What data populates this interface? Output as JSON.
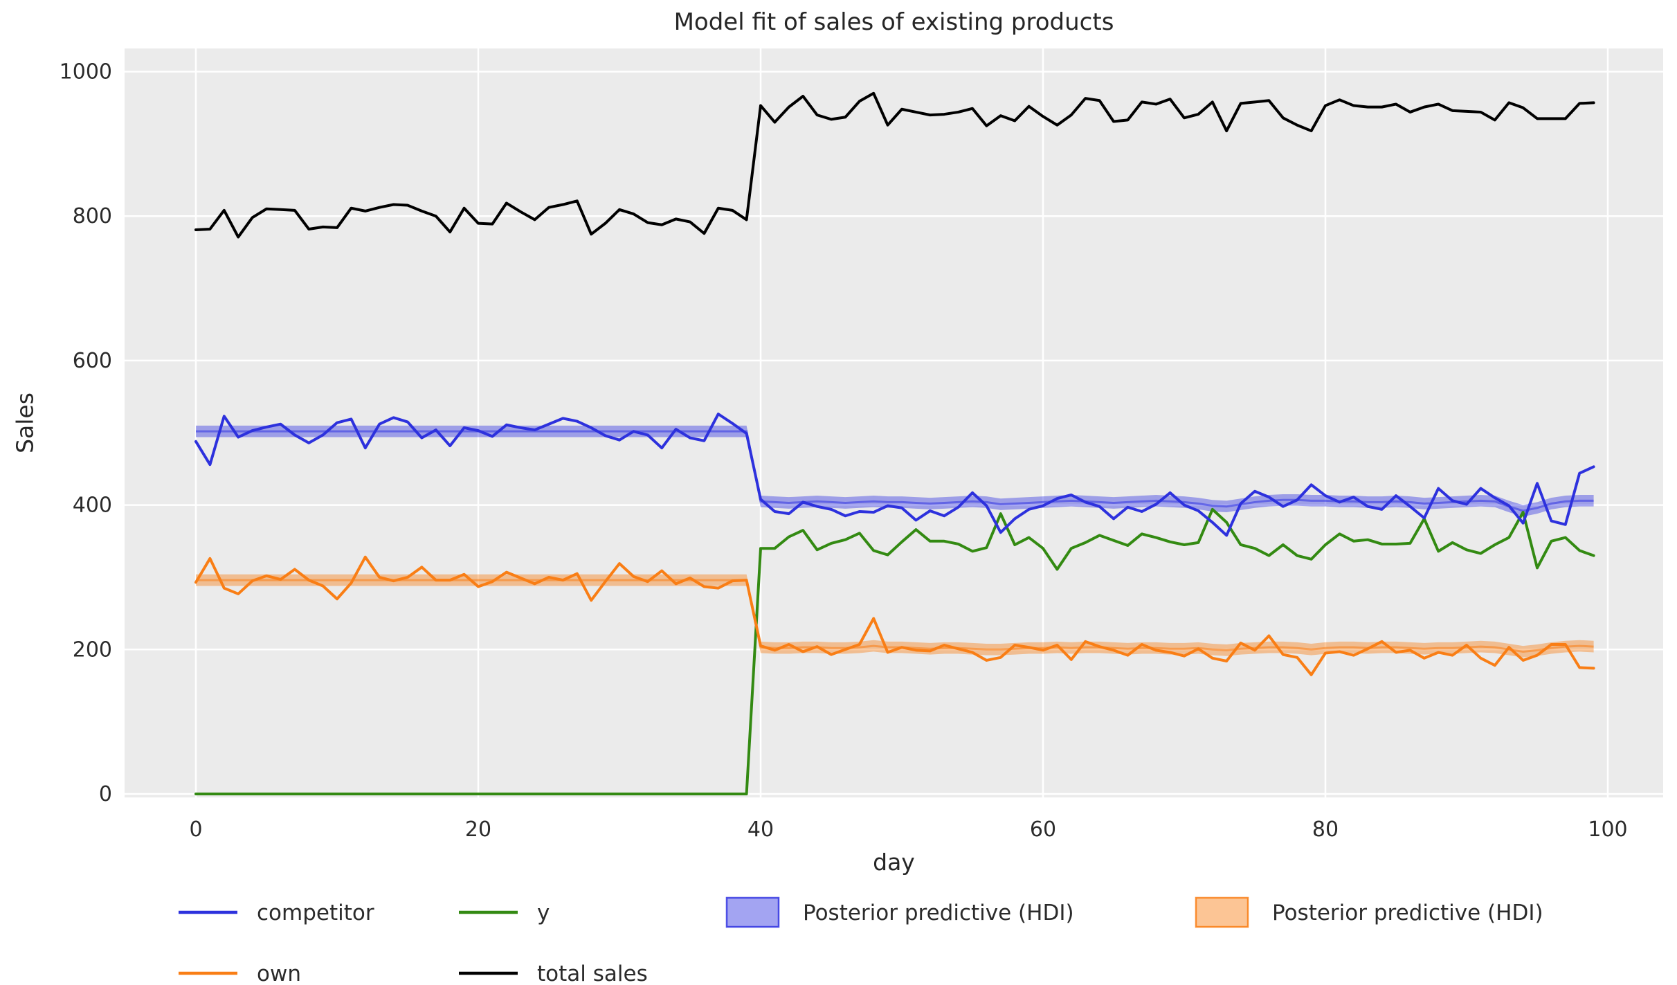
{
  "chart_data": {
    "type": "line",
    "title": "Model fit of sales of existing products",
    "xlabel": "day",
    "ylabel": "Sales",
    "x_ticks": [
      0,
      20,
      40,
      60,
      80,
      100
    ],
    "y_ticks": [
      0,
      200,
      400,
      600,
      800,
      1000
    ],
    "xlim": [
      -5,
      104
    ],
    "ylim": [
      -5,
      1032
    ],
    "grid": true,
    "plot_bg_color": "#ebebeb",
    "grid_color": "#ffffff",
    "text_color": "#2b2b2b",
    "x_days": {
      "from": 0,
      "to": 99,
      "step": 1
    },
    "series": [
      {
        "name": "competitor",
        "color": "#2d31dd",
        "values": [
          488,
          456,
          523,
          494,
          503,
          508,
          512,
          497,
          486,
          497,
          514,
          519,
          479,
          512,
          521,
          515,
          493,
          504,
          482,
          507,
          503,
          495,
          511,
          507,
          504,
          512,
          520,
          516,
          507,
          496,
          490,
          502,
          497,
          479,
          505,
          493,
          489,
          526,
          513,
          499,
          408,
          391,
          388,
          404,
          398,
          394,
          385,
          391,
          390,
          399,
          396,
          379,
          392,
          385,
          397,
          417,
          399,
          362,
          381,
          394,
          399,
          409,
          414,
          404,
          398,
          381,
          397,
          391,
          401,
          417,
          400,
          392,
          376,
          358,
          402,
          419,
          411,
          398,
          407,
          428,
          413,
          404,
          411,
          398,
          394,
          413,
          398,
          382,
          423,
          406,
          401,
          423,
          410,
          399,
          375,
          430,
          378,
          373,
          444,
          453
        ]
      },
      {
        "name": "own",
        "color": "#f97e15",
        "values": [
          293,
          326,
          285,
          277,
          295,
          302,
          297,
          311,
          296,
          288,
          270,
          292,
          328,
          300,
          295,
          300,
          314,
          296,
          296,
          304,
          287,
          294,
          307,
          299,
          291,
          300,
          296,
          305,
          268,
          294,
          319,
          301,
          294,
          309,
          291,
          299,
          287,
          285,
          295,
          296,
          205,
          199,
          207,
          197,
          204,
          193,
          200,
          207,
          243,
          196,
          203,
          199,
          198,
          206,
          201,
          196,
          185,
          189,
          206,
          203,
          199,
          206,
          186,
          211,
          204,
          199,
          192,
          207,
          199,
          196,
          191,
          201,
          188,
          184,
          209,
          199,
          219,
          193,
          189,
          165,
          195,
          197,
          192,
          201,
          211,
          196,
          199,
          188,
          196,
          192,
          206,
          188,
          178,
          203,
          185,
          192,
          207,
          207,
          175,
          174
        ]
      },
      {
        "name": "y",
        "color": "#338a12",
        "values": [
          0,
          0,
          0,
          0,
          0,
          0,
          0,
          0,
          0,
          0,
          0,
          0,
          0,
          0,
          0,
          0,
          0,
          0,
          0,
          0,
          0,
          0,
          0,
          0,
          0,
          0,
          0,
          0,
          0,
          0,
          0,
          0,
          0,
          0,
          0,
          0,
          0,
          0,
          0,
          0,
          340,
          340,
          356,
          365,
          338,
          347,
          352,
          361,
          337,
          331,
          349,
          366,
          350,
          350,
          346,
          336,
          341,
          388,
          345,
          355,
          340,
          311,
          340,
          348,
          358,
          351,
          344,
          360,
          355,
          349,
          345,
          348,
          394,
          376,
          345,
          340,
          330,
          345,
          330,
          325,
          345,
          360,
          350,
          352,
          346,
          346,
          347,
          381,
          336,
          348,
          338,
          333,
          345,
          355,
          390,
          313,
          350,
          355,
          337,
          330
        ]
      },
      {
        "name": "total sales",
        "color": "#000000",
        "values": [
          781,
          782,
          808,
          771,
          798,
          810,
          809,
          808,
          782,
          785,
          784,
          811,
          807,
          812,
          816,
          815,
          807,
          800,
          778,
          811,
          790,
          789,
          818,
          806,
          795,
          812,
          816,
          821,
          775,
          790,
          809,
          803,
          791,
          788,
          796,
          792,
          776,
          811,
          808,
          795,
          953,
          930,
          951,
          966,
          940,
          934,
          937,
          959,
          970,
          926,
          948,
          944,
          940,
          941,
          944,
          949,
          925,
          939,
          932,
          952,
          938,
          926,
          940,
          963,
          960,
          931,
          933,
          958,
          955,
          962,
          936,
          941,
          958,
          918,
          956,
          958,
          960,
          936,
          926,
          918,
          953,
          961,
          953,
          951,
          951,
          955,
          944,
          951,
          955,
          946,
          945,
          944,
          933,
          957,
          950,
          935,
          935,
          935,
          956,
          957
        ]
      }
    ],
    "hdi_bands": [
      {
        "name": "Posterior predictive (HDI) competitor",
        "color": "#3235e2",
        "half_width": 8,
        "mean": [
          502,
          502,
          502,
          502,
          502,
          502,
          502,
          502,
          502,
          502,
          502,
          502,
          502,
          502,
          502,
          502,
          502,
          502,
          502,
          502,
          502,
          502,
          502,
          502,
          502,
          502,
          502,
          502,
          502,
          502,
          502,
          502,
          502,
          502,
          502,
          502,
          502,
          502,
          502,
          502,
          405,
          404,
          403,
          404,
          405,
          404,
          403,
          404,
          405,
          404,
          404,
          403,
          402,
          403,
          404,
          405,
          404,
          401,
          402,
          403,
          404,
          405,
          406,
          405,
          404,
          403,
          404,
          405,
          406,
          405,
          404,
          402,
          399,
          398,
          401,
          404,
          406,
          407,
          407,
          406,
          406,
          405,
          405,
          404,
          404,
          405,
          404,
          402,
          403,
          404,
          405,
          406,
          405,
          398,
          392,
          396,
          402,
          405,
          406,
          406
        ]
      },
      {
        "name": "Posterior predictive (HDI) own",
        "color": "#f97e15",
        "half_width": 8,
        "mean": [
          296,
          296,
          296,
          296,
          296,
          296,
          296,
          296,
          296,
          296,
          296,
          296,
          296,
          296,
          296,
          296,
          296,
          296,
          296,
          296,
          296,
          296,
          296,
          296,
          296,
          296,
          296,
          296,
          296,
          296,
          296,
          296,
          296,
          296,
          296,
          296,
          296,
          296,
          296,
          296,
          203,
          202,
          202,
          203,
          203,
          202,
          202,
          203,
          205,
          203,
          203,
          202,
          201,
          202,
          202,
          201,
          200,
          200,
          201,
          202,
          202,
          203,
          202,
          203,
          203,
          202,
          201,
          202,
          202,
          201,
          201,
          202,
          200,
          199,
          201,
          202,
          203,
          203,
          202,
          200,
          202,
          203,
          203,
          202,
          203,
          203,
          202,
          201,
          202,
          202,
          203,
          204,
          203,
          200,
          197,
          199,
          202,
          204,
          205,
          204
        ]
      }
    ],
    "legend": {
      "items": [
        {
          "label": "competitor",
          "swatch": "line",
          "color": "#2d31dd"
        },
        {
          "label": "own",
          "swatch": "line",
          "color": "#f97e15"
        },
        {
          "label": "y",
          "swatch": "line",
          "color": "#338a12"
        },
        {
          "label": "total sales",
          "swatch": "line",
          "color": "#000000"
        },
        {
          "label": "Posterior predictive (HDI)",
          "swatch": "patch",
          "color": "#3235e2"
        },
        {
          "label": "Posterior predictive (HDI)",
          "swatch": "patch",
          "color": "#f97e15"
        }
      ]
    }
  }
}
